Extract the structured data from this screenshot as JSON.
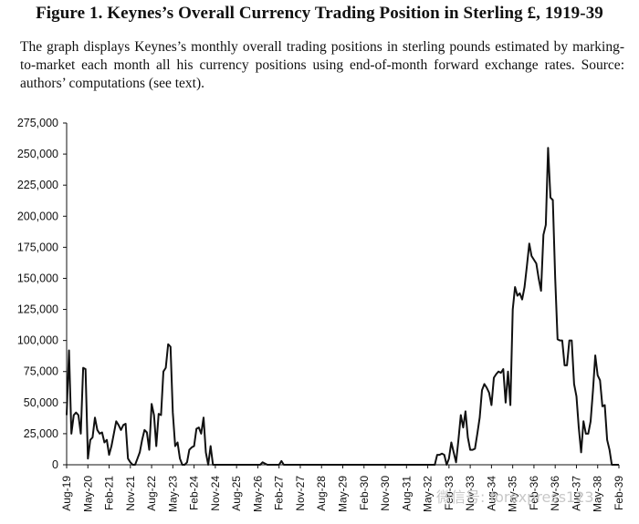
{
  "figure": {
    "title": "Figure 1. Keynes’s Overall Currency Trading Position in Sterling £, 1919-39",
    "caption": "The graph displays Keynes’s monthly overall trading positions in sterling pounds estimated by marking-to-market each month all his currency positions using end-of-month forward exchange rates. Source: authors’ computations (see text)."
  },
  "watermark": "微信号: forexpress123",
  "chart_data": {
    "type": "line",
    "title": "",
    "xlabel": "",
    "ylabel": "",
    "ylim": [
      0,
      275000
    ],
    "grid": false,
    "y_ticks": [
      "0",
      "25,000",
      "50,000",
      "75,000",
      "100,000",
      "125,000",
      "150,000",
      "175,000",
      "200,000",
      "225,000",
      "250,000",
      "275,000"
    ],
    "x_ticks": [
      "Aug-19",
      "May-20",
      "Feb-21",
      "Nov-21",
      "Aug-22",
      "May-23",
      "Feb-24",
      "Nov-24",
      "Aug-25",
      "May-26",
      "Feb-27",
      "Nov-27",
      "Aug-28",
      "May-29",
      "Feb-30",
      "Nov-30",
      "Aug-31",
      "May-32",
      "Feb-33",
      "Nov-33",
      "Aug-34",
      "May-35",
      "Feb-36",
      "Nov-36",
      "Aug-37",
      "May-38",
      "Feb-39"
    ],
    "series": [
      {
        "name": "",
        "color": "#111111",
        "points": [
          [
            "Aug-19",
            40000
          ],
          [
            "Sep-19",
            92000
          ],
          [
            "Oct-19",
            25000
          ],
          [
            "Nov-19",
            40000
          ],
          [
            "Dec-19",
            42000
          ],
          [
            "Jan-20",
            40000
          ],
          [
            "Feb-20",
            25000
          ],
          [
            "Mar-20",
            78000
          ],
          [
            "Apr-20",
            77000
          ],
          [
            "May-20",
            5000
          ],
          [
            "Jun-20",
            20000
          ],
          [
            "Jul-20",
            22000
          ],
          [
            "Aug-20",
            38000
          ],
          [
            "Sep-20",
            28000
          ],
          [
            "Oct-20",
            25000
          ],
          [
            "Nov-20",
            26000
          ],
          [
            "Dec-20",
            18000
          ],
          [
            "Jan-21",
            20000
          ],
          [
            "Feb-21",
            8000
          ],
          [
            "Mar-21",
            15000
          ],
          [
            "Apr-21",
            25000
          ],
          [
            "May-21",
            35000
          ],
          [
            "Jun-21",
            32000
          ],
          [
            "Jul-21",
            28000
          ],
          [
            "Aug-21",
            32000
          ],
          [
            "Sep-21",
            33000
          ],
          [
            "Oct-21",
            5000
          ],
          [
            "Nov-21",
            2000
          ],
          [
            "Dec-21",
            0
          ],
          [
            "Jan-22",
            0
          ],
          [
            "Feb-22",
            5000
          ],
          [
            "Mar-22",
            10000
          ],
          [
            "Apr-22",
            20000
          ],
          [
            "May-22",
            28000
          ],
          [
            "Jun-22",
            26000
          ],
          [
            "Jul-22",
            12000
          ],
          [
            "Aug-22",
            49000
          ],
          [
            "Sep-22",
            40000
          ],
          [
            "Oct-22",
            15000
          ],
          [
            "Nov-22",
            41000
          ],
          [
            "Dec-22",
            40000
          ],
          [
            "Jan-23",
            75000
          ],
          [
            "Feb-23",
            78000
          ],
          [
            "Mar-23",
            97000
          ],
          [
            "Apr-23",
            95000
          ],
          [
            "May-23",
            42000
          ],
          [
            "Jun-23",
            15000
          ],
          [
            "Jul-23",
            18000
          ],
          [
            "Aug-23",
            5000
          ],
          [
            "Sep-23",
            0
          ],
          [
            "Oct-23",
            0
          ],
          [
            "Nov-23",
            2000
          ],
          [
            "Dec-23",
            12000
          ],
          [
            "Jan-24",
            14000
          ],
          [
            "Feb-24",
            15000
          ],
          [
            "Mar-24",
            29000
          ],
          [
            "Apr-24",
            30000
          ],
          [
            "May-24",
            25000
          ],
          [
            "Jun-24",
            38000
          ],
          [
            "Jul-24",
            10000
          ],
          [
            "Aug-24",
            0
          ],
          [
            "Sep-24",
            15000
          ],
          [
            "Oct-24",
            0
          ],
          [
            "Nov-24",
            0
          ],
          [
            "Dec-24",
            0
          ],
          [
            "Jan-26",
            0
          ],
          [
            "Jun-26",
            0
          ],
          [
            "Jul-26",
            2000
          ],
          [
            "Aug-26",
            1000
          ],
          [
            "Sep-26",
            0
          ],
          [
            "Jan-27",
            0
          ],
          [
            "Feb-27",
            0
          ],
          [
            "Mar-27",
            3000
          ],
          [
            "Apr-27",
            0
          ],
          [
            "Aug-32",
            0
          ],
          [
            "Sep-32",
            8000
          ],
          [
            "Oct-32",
            8000
          ],
          [
            "Nov-32",
            9000
          ],
          [
            "Dec-32",
            8000
          ],
          [
            "Jan-33",
            0
          ],
          [
            "Feb-33",
            5000
          ],
          [
            "Mar-33",
            18000
          ],
          [
            "Apr-33",
            10000
          ],
          [
            "May-33",
            2000
          ],
          [
            "Jun-33",
            20000
          ],
          [
            "Jul-33",
            40000
          ],
          [
            "Aug-33",
            30000
          ],
          [
            "Sep-33",
            43000
          ],
          [
            "Oct-33",
            22000
          ],
          [
            "Nov-33",
            12000
          ],
          [
            "Dec-33",
            12000
          ],
          [
            "Jan-34",
            13000
          ],
          [
            "Feb-34",
            25000
          ],
          [
            "Mar-34",
            38000
          ],
          [
            "Apr-34",
            60000
          ],
          [
            "May-34",
            65000
          ],
          [
            "Jun-34",
            62000
          ],
          [
            "Jul-34",
            58000
          ],
          [
            "Aug-34",
            48000
          ],
          [
            "Sep-34",
            70000
          ],
          [
            "Oct-34",
            73000
          ],
          [
            "Nov-34",
            75000
          ],
          [
            "Dec-34",
            74000
          ],
          [
            "Jan-35",
            77000
          ],
          [
            "Feb-35",
            50000
          ],
          [
            "Mar-35",
            75000
          ],
          [
            "Apr-35",
            48000
          ],
          [
            "May-35",
            125000
          ],
          [
            "Jun-35",
            143000
          ],
          [
            "Jul-35",
            136000
          ],
          [
            "Aug-35",
            138000
          ],
          [
            "Sep-35",
            133000
          ],
          [
            "Oct-35",
            143000
          ],
          [
            "Nov-35",
            160000
          ],
          [
            "Dec-35",
            178000
          ],
          [
            "Jan-36",
            168000
          ],
          [
            "Feb-36",
            165000
          ],
          [
            "Mar-36",
            162000
          ],
          [
            "Apr-36",
            150000
          ],
          [
            "May-36",
            140000
          ],
          [
            "Jun-36",
            185000
          ],
          [
            "Jul-36",
            193000
          ],
          [
            "Aug-36",
            255000
          ],
          [
            "Sep-36",
            215000
          ],
          [
            "Oct-36",
            213000
          ],
          [
            "Nov-36",
            150000
          ],
          [
            "Dec-36",
            101000
          ],
          [
            "Jan-37",
            100000
          ],
          [
            "Feb-37",
            100000
          ],
          [
            "Mar-37",
            80000
          ],
          [
            "Apr-37",
            80000
          ],
          [
            "May-37",
            100000
          ],
          [
            "Jun-37",
            100000
          ],
          [
            "Jul-37",
            65000
          ],
          [
            "Aug-37",
            55000
          ],
          [
            "Sep-37",
            30000
          ],
          [
            "Oct-37",
            10000
          ],
          [
            "Nov-37",
            35000
          ],
          [
            "Dec-37",
            25000
          ],
          [
            "Jan-38",
            25000
          ],
          [
            "Feb-38",
            35000
          ],
          [
            "Mar-38",
            60000
          ],
          [
            "Apr-38",
            88000
          ],
          [
            "May-38",
            72000
          ],
          [
            "Jun-38",
            68000
          ],
          [
            "Jul-38",
            47000
          ],
          [
            "Aug-38",
            48000
          ],
          [
            "Sep-38",
            20000
          ],
          [
            "Oct-38",
            12000
          ],
          [
            "Nov-38",
            0
          ],
          [
            "Dec-38",
            0
          ],
          [
            "Jan-39",
            0
          ],
          [
            "Feb-39",
            0
          ]
        ]
      }
    ]
  }
}
